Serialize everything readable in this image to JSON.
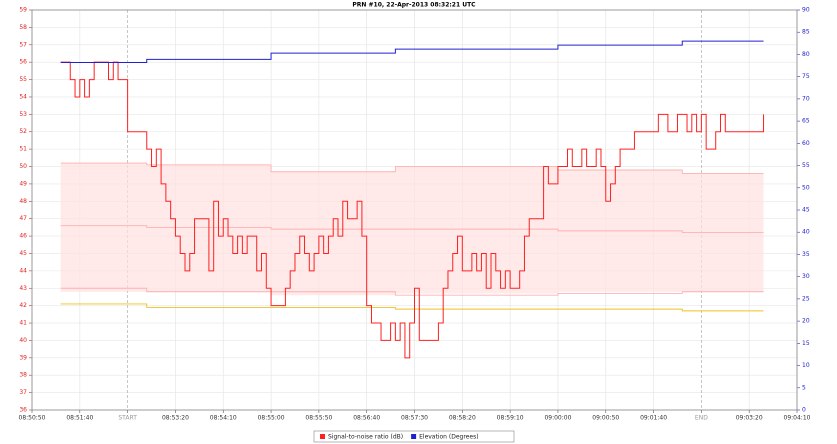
{
  "chart_data": {
    "type": "step",
    "title": "PRN #10, 22-Apr-2013 08:32:21 UTC",
    "xlim": [
      "08:50:50",
      "09:04:10"
    ],
    "xticks": [
      "08:50:50",
      "08:51:40",
      {
        "value": "08:52:30",
        "label": "START"
      },
      "08:53:20",
      "08:54:10",
      "08:55:00",
      "08:55:50",
      "08:56:40",
      "08:57:30",
      "08:58:20",
      "08:59:10",
      "09:00:00",
      "09:00:50",
      "09:01:40",
      {
        "value": "09:02:30",
        "label": "END"
      },
      "09:03:20",
      "09:04:10"
    ],
    "ylim": [
      36,
      59
    ],
    "yticks": [
      36,
      37,
      38,
      39,
      40,
      41,
      42,
      43,
      44,
      45,
      46,
      47,
      48,
      49,
      50,
      51,
      52,
      53,
      54,
      55,
      56,
      57,
      58,
      59
    ],
    "y2lim": [
      0,
      90
    ],
    "y2ticks": [
      0,
      5,
      10,
      15,
      20,
      25,
      30,
      35,
      40,
      45,
      50,
      55,
      60,
      65,
      70,
      75,
      80,
      85,
      90
    ],
    "grid": true,
    "series": [
      {
        "name": "Signal-to-noise ratio (dB)",
        "color": "#ff2020",
        "x": [
          "08:51:20",
          "08:51:30",
          "08:51:35",
          "08:51:40",
          "08:51:45",
          "08:51:50",
          "08:51:55",
          "08:52:10",
          "08:52:15",
          "08:52:20",
          "08:52:30",
          "08:52:50",
          "08:52:55",
          "08:53:00",
          "08:53:05",
          "08:53:10",
          "08:53:15",
          "08:53:20",
          "08:53:25",
          "08:53:30",
          "08:53:35",
          "08:53:40",
          "08:53:55",
          "08:54:00",
          "08:54:05",
          "08:54:10",
          "08:54:15",
          "08:54:20",
          "08:54:25",
          "08:54:30",
          "08:54:35",
          "08:54:45",
          "08:54:50",
          "08:54:55",
          "08:55:00",
          "08:55:15",
          "08:55:20",
          "08:55:25",
          "08:55:30",
          "08:55:35",
          "08:55:40",
          "08:55:45",
          "08:55:50",
          "08:55:55",
          "08:56:00",
          "08:56:05",
          "08:56:10",
          "08:56:15",
          "08:56:20",
          "08:56:30",
          "08:56:35",
          "08:56:40",
          "08:56:45",
          "08:56:55",
          "08:57:05",
          "08:57:10",
          "08:57:15",
          "08:57:20",
          "08:57:25",
          "08:57:30",
          "08:57:35",
          "08:57:55",
          "08:58:00",
          "08:58:05",
          "08:58:10",
          "08:58:15",
          "08:58:20",
          "08:58:30",
          "08:58:35",
          "08:58:40",
          "08:58:45",
          "08:58:50",
          "08:58:55",
          "08:59:00",
          "08:59:05",
          "08:59:10",
          "08:59:20",
          "08:59:25",
          "08:59:30",
          "08:59:45",
          "08:59:50",
          "09:00:00",
          "09:00:10",
          "09:00:15",
          "09:00:25",
          "09:00:30",
          "09:00:40",
          "09:00:45",
          "09:00:50",
          "09:00:55",
          "09:01:00",
          "09:01:05",
          "09:01:20",
          "09:01:45",
          "09:01:55",
          "09:02:05",
          "09:02:15",
          "09:02:20",
          "09:02:25",
          "09:02:30",
          "09:02:35",
          "09:02:45",
          "09:02:50",
          "09:02:55",
          "09:03:20",
          "09:03:35"
        ],
        "values": [
          56,
          55,
          54,
          55,
          54,
          55,
          56,
          55,
          56,
          55,
          52,
          51,
          50,
          51,
          49,
          48,
          47,
          46,
          45,
          44,
          45,
          47,
          44,
          48,
          46,
          47,
          46,
          45,
          46,
          45,
          46,
          44,
          45,
          43,
          42,
          43,
          44,
          45,
          46,
          45,
          44,
          45,
          46,
          45,
          46,
          47,
          46,
          48,
          47,
          48,
          46,
          42,
          41,
          40,
          41,
          40,
          41,
          39,
          41,
          43,
          40,
          41,
          43,
          44,
          45,
          46,
          44,
          45,
          44,
          45,
          43,
          45,
          44,
          43,
          44,
          43,
          44,
          46,
          47,
          50,
          49,
          50,
          51,
          50,
          51,
          50,
          51,
          50,
          48,
          49,
          50,
          51,
          52,
          53,
          52,
          53,
          52,
          53,
          52,
          53,
          51,
          52,
          53,
          52,
          52,
          53
        ]
      },
      {
        "name": "Elevation (Degrees)",
        "color": "#2020d0",
        "axis": "y2",
        "x": [
          "08:51:20",
          "08:52:50",
          "08:55:00",
          "08:57:10",
          "09:00:00",
          "09:02:10",
          "09:03:35"
        ],
        "values": [
          78.2,
          78.9,
          80.3,
          81.2,
          82.1,
          83.0,
          83.0
        ]
      }
    ],
    "bands": [
      {
        "color": "#ffb0b0",
        "x": [
          "08:51:20",
          "08:52:50",
          "08:55:00",
          "08:57:10",
          "09:00:00",
          "09:02:10",
          "09:03:35"
        ],
        "values": [
          50.2,
          50.1,
          49.7,
          50.0,
          49.8,
          49.6,
          49.6
        ]
      },
      {
        "color": "#ffb0b0",
        "x": [
          "08:51:20",
          "08:52:50",
          "08:55:00",
          "08:57:10",
          "09:00:00",
          "09:02:10",
          "09:03:35"
        ],
        "values": [
          46.6,
          46.5,
          46.4,
          46.4,
          46.3,
          46.2,
          46.2
        ]
      },
      {
        "color": "#ffb0b0",
        "x": [
          "08:51:20",
          "08:52:50",
          "08:55:00",
          "08:57:10",
          "09:00:00",
          "09:02:10",
          "09:03:35"
        ],
        "values": [
          43.0,
          42.8,
          42.8,
          42.6,
          42.7,
          42.8,
          42.8
        ]
      },
      {
        "color": "#f0c020",
        "x": [
          "08:51:20",
          "08:52:50",
          "08:55:00",
          "08:57:10",
          "09:00:00",
          "09:02:10",
          "09:03:35"
        ],
        "values": [
          42.1,
          41.9,
          41.9,
          41.8,
          41.8,
          41.7,
          41.7
        ]
      }
    ]
  }
}
